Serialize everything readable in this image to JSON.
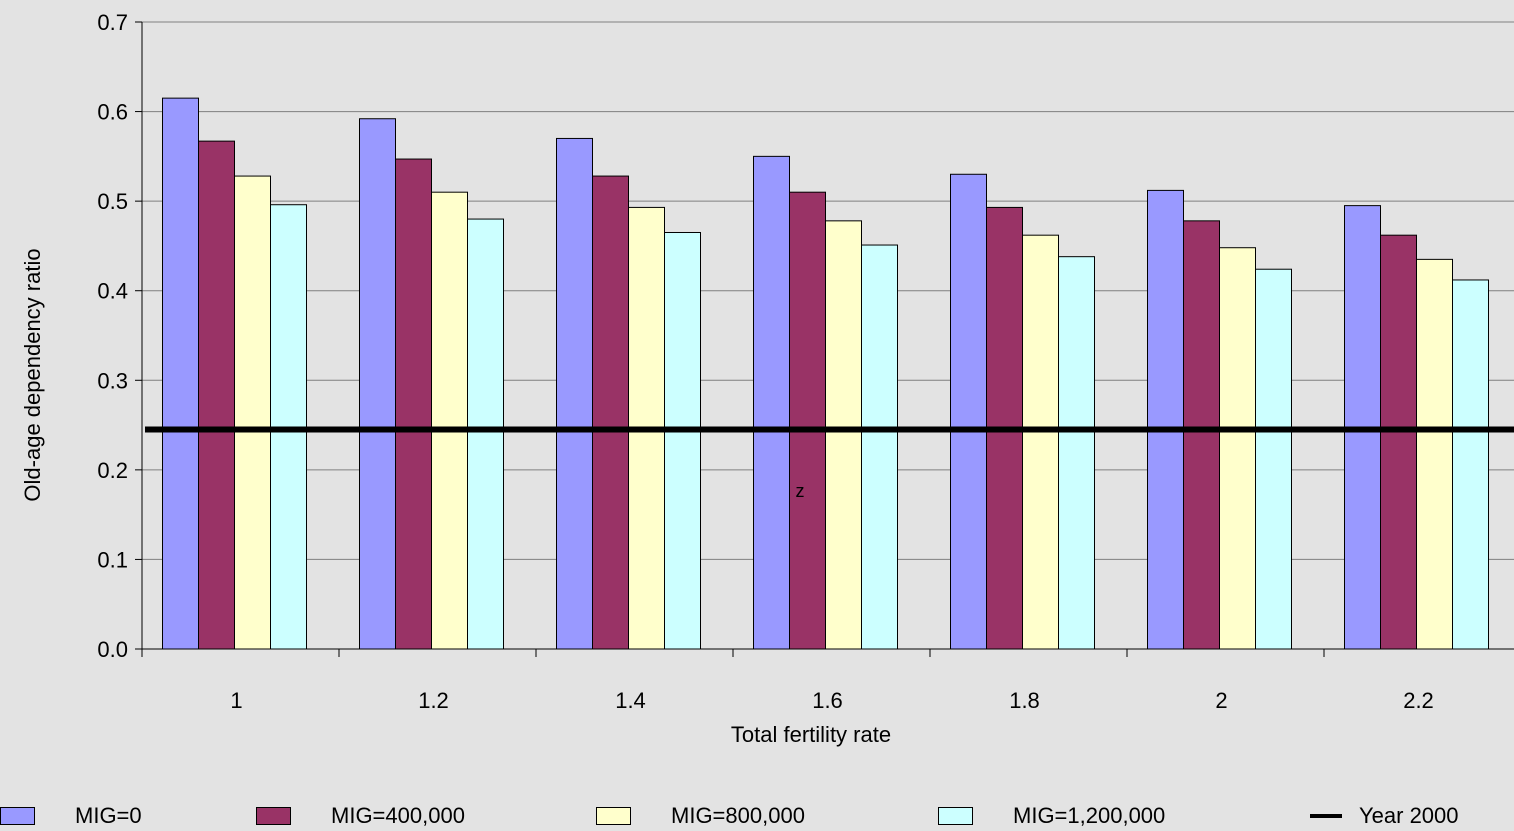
{
  "chart_data": {
    "type": "bar",
    "title": "",
    "xlabel": "Total fertility rate",
    "ylabel": "Old-age dependency ratio",
    "ylim": [
      0,
      0.7
    ],
    "yticks": [
      "0.0",
      "0.1",
      "0.2",
      "0.3",
      "0.4",
      "0.5",
      "0.6",
      "0.7"
    ],
    "categories": [
      "1",
      "1.2",
      "1.4",
      "1.6",
      "1.8",
      "2",
      "2.2"
    ],
    "series": [
      {
        "name": "MIG=0",
        "color": "#9999ff",
        "values": [
          0.615,
          0.592,
          0.57,
          0.55,
          0.53,
          0.512,
          0.495
        ]
      },
      {
        "name": "MIG=400,000",
        "color": "#993366",
        "values": [
          0.567,
          0.547,
          0.528,
          0.51,
          0.493,
          0.478,
          0.462
        ]
      },
      {
        "name": "MIG=800,000",
        "color": "#ffffcc",
        "values": [
          0.528,
          0.51,
          0.493,
          0.478,
          0.462,
          0.448,
          0.435
        ]
      },
      {
        "name": "MIG=1,200,000",
        "color": "#ccffff",
        "values": [
          0.496,
          0.48,
          0.465,
          0.451,
          0.438,
          0.424,
          0.412
        ]
      }
    ],
    "reference_line": {
      "name": "Year 2000",
      "value": 0.245,
      "color": "#000000"
    },
    "annotation": "z",
    "grid": true,
    "legend_position": "bottom"
  }
}
